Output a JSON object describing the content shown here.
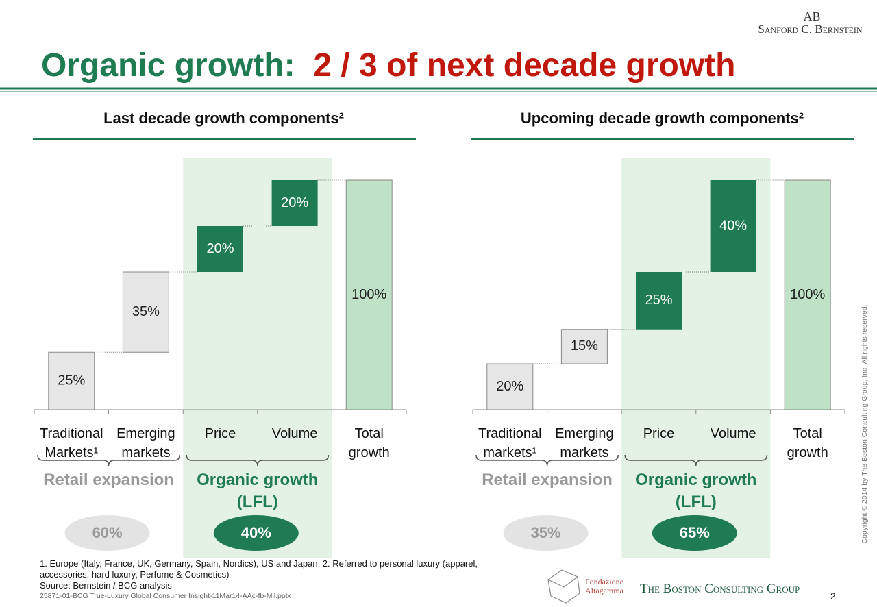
{
  "header": {
    "logo_mark": "AB",
    "logo_text": "Sanford C. Bernstein",
    "title_part1": "Organic growth:",
    "title_part2": "2 / 3 of next decade growth"
  },
  "chart_data": [
    {
      "type": "waterfall",
      "title": "Last decade growth components²",
      "categories": [
        "Traditional Markets¹",
        "Emerging markets",
        "Price",
        "Volume",
        "Total growth"
      ],
      "values": [
        25,
        35,
        20,
        20,
        100
      ],
      "value_labels": [
        "25%",
        "35%",
        "20%",
        "20%",
        "100%"
      ],
      "colors": [
        "#e6e6e6",
        "#e6e6e6",
        "#1e7b52",
        "#1e7b52",
        "#bfe2c7"
      ],
      "groups": {
        "names": [
          "Retail expansion",
          "Organic growth (LFL)"
        ],
        "values": [
          60,
          40
        ],
        "value_labels": [
          "60%",
          "40%"
        ],
        "colors": [
          "#e3e3e3",
          "#1e7b52"
        ]
      }
    },
    {
      "type": "waterfall",
      "title": "Upcoming decade growth components²",
      "categories": [
        "Traditional markets¹",
        "Emerging markets",
        "Price",
        "Volume",
        "Total growth"
      ],
      "values": [
        20,
        15,
        25,
        40,
        100
      ],
      "value_labels": [
        "20%",
        "15%",
        "25%",
        "40%",
        "100%"
      ],
      "colors": [
        "#e6e6e6",
        "#e6e6e6",
        "#1e7b52",
        "#1e7b52",
        "#bfe2c7"
      ],
      "groups": {
        "names": [
          "Retail expansion",
          "Organic growth (LFL)"
        ],
        "values": [
          35,
          65
        ],
        "value_labels": [
          "35%",
          "65%"
        ],
        "colors": [
          "#e3e3e3",
          "#1e7b52"
        ]
      }
    }
  ],
  "footnotes": [
    "1. Europe (Italy, France, UK, Germany, Spain, Nordics), US and Japan; 2. Referred to personal luxury (apparel, accessories, hard luxury, Perfume & Cosmetics)",
    "Source: Bernstein / BCG analysis"
  ],
  "file_name": "25871-01-BCG True-Luxury Global Consumer Insight-11Mar14-AAc-fb-Mil.pptx",
  "copyright": "Copyright © 2014 by The Boston Consulting Group, Inc. All rights reserved.",
  "logos": [
    "Fondazione Altagamma",
    "The Boston Consulting Group"
  ],
  "page_number": "2"
}
